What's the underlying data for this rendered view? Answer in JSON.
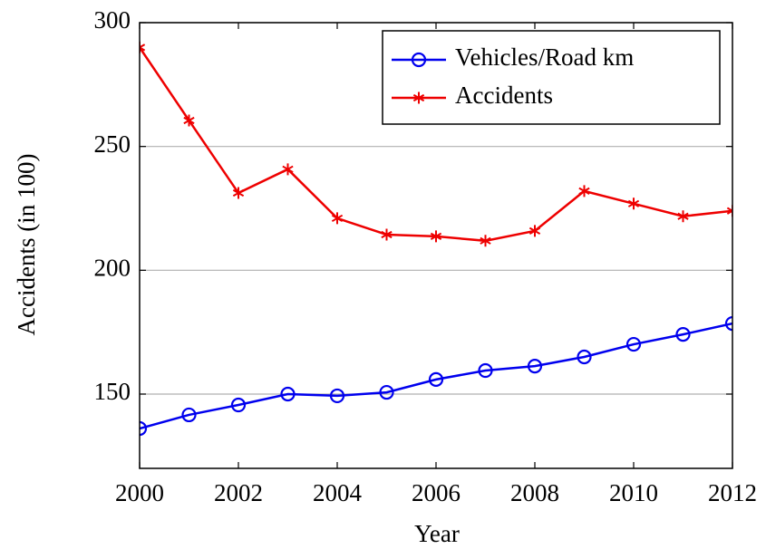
{
  "chart_data": {
    "type": "line",
    "x_label": "Year",
    "y_label": "Accidents (in 100)",
    "x": [
      2000,
      2001,
      2002,
      2003,
      2004,
      2005,
      2006,
      2007,
      2008,
      2009,
      2010,
      2011,
      2012
    ],
    "series": [
      {
        "name": "Vehicles/Road km",
        "color": "#0000ee",
        "marker": "circle",
        "values": [
          136.1,
          141.6,
          145.6,
          150,
          149.3,
          150.7,
          155.9,
          159.5,
          161.3,
          165,
          170.1,
          174.1,
          178.5
        ]
      },
      {
        "name": "Accidents",
        "color": "#ee0000",
        "marker": "asterisk",
        "values": [
          290,
          260.5,
          231.2,
          240.8,
          221,
          214.4,
          213.7,
          211.9,
          215.9,
          232,
          226.9,
          221.8,
          224
        ]
      }
    ],
    "xlim": [
      2000,
      2012
    ],
    "ylim": [
      120,
      300
    ],
    "xticks": [
      2000,
      2002,
      2004,
      2006,
      2008,
      2010,
      2012
    ],
    "yticks": [
      150,
      200,
      250,
      300
    ],
    "grid": true,
    "legend_position": "upper right"
  }
}
